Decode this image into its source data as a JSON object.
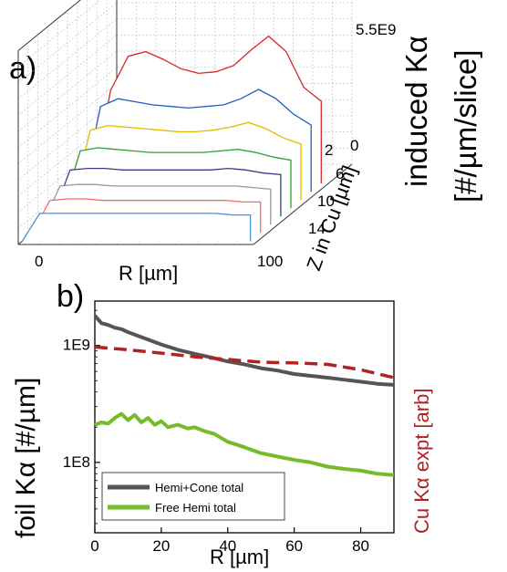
{
  "chart_data": [
    {
      "panel_label": "a)",
      "type": "line",
      "view": "3d-waterfall",
      "ylabel": "induced Kα",
      "ylabel_unit": "[#/µm/slice]",
      "xlabel": "R [µm]",
      "zlabel": "Z in Cu [µm]",
      "x_ticks": [
        "0",
        "100"
      ],
      "z_ticks": [
        "2",
        "6",
        "10",
        "14"
      ],
      "z_extra_tick": "0",
      "y_max_label": "5.5E9",
      "grid": true,
      "series": [
        {
          "color": "#d62728",
          "values": [
            0.0,
            0.6,
            0.82,
            0.85,
            0.8,
            0.74,
            0.71,
            0.72,
            0.76,
            0.86,
            0.95,
            0.85,
            0.62,
            0.53
          ]
        },
        {
          "color": "#1f5fbf",
          "values": [
            0.0,
            0.55,
            0.6,
            0.58,
            0.56,
            0.55,
            0.54,
            0.55,
            0.56,
            0.6,
            0.66,
            0.6,
            0.5,
            0.43
          ]
        },
        {
          "color": "#e6b800",
          "values": [
            0.0,
            0.45,
            0.48,
            0.47,
            0.46,
            0.45,
            0.44,
            0.44,
            0.45,
            0.47,
            0.5,
            0.46,
            0.4,
            0.36
          ]
        },
        {
          "color": "#2ca02c",
          "values": [
            0.0,
            0.37,
            0.39,
            0.38,
            0.37,
            0.36,
            0.36,
            0.36,
            0.36,
            0.37,
            0.38,
            0.36,
            0.33,
            0.31
          ]
        },
        {
          "color": "#3a3a8c",
          "values": [
            0.0,
            0.3,
            0.31,
            0.31,
            0.3,
            0.3,
            0.3,
            0.3,
            0.3,
            0.3,
            0.31,
            0.3,
            0.28,
            0.27
          ]
        },
        {
          "color": "#9a9a9a",
          "values": [
            0.0,
            0.25,
            0.26,
            0.26,
            0.25,
            0.25,
            0.25,
            0.25,
            0.25,
            0.25,
            0.25,
            0.25,
            0.24,
            0.23
          ]
        },
        {
          "color": "#ff6666",
          "values": [
            0.0,
            0.21,
            0.22,
            0.22,
            0.21,
            0.21,
            0.21,
            0.21,
            0.21,
            0.21,
            0.21,
            0.21,
            0.2,
            0.2
          ]
        },
        {
          "color": "#4a90d9",
          "values": [
            0.0,
            0.18,
            0.18,
            0.18,
            0.18,
            0.18,
            0.18,
            0.18,
            0.18,
            0.18,
            0.18,
            0.18,
            0.17,
            0.17
          ]
        }
      ]
    },
    {
      "panel_label": "b)",
      "type": "line",
      "xlabel": "R [µm]",
      "ylabel": "foil Kα [#/µm]",
      "y2label": "Cu Kα expt [arb]",
      "xlim": [
        0,
        90
      ],
      "ylim": [
        25000000,
        2400000000
      ],
      "yscale": "log",
      "x_ticks": [
        0,
        20,
        40,
        60,
        80
      ],
      "y_ticks": [
        {
          "value": 100000000,
          "label": "1E8"
        },
        {
          "value": 1000000000,
          "label": "1E9"
        }
      ],
      "legend": "bottom-left",
      "series": [
        {
          "name": "Hemi+Cone total",
          "color": "#555555",
          "style": "solid",
          "in_legend": true,
          "x": [
            0,
            2,
            4,
            6,
            8,
            10,
            15,
            20,
            25,
            30,
            35,
            40,
            45,
            50,
            55,
            60,
            65,
            70,
            75,
            80,
            85,
            90
          ],
          "y": [
            1800000000,
            1550000000,
            1500000000,
            1420000000,
            1380000000,
            1300000000,
            1150000000,
            1020000000,
            920000000,
            850000000,
            790000000,
            730000000,
            690000000,
            640000000,
            610000000,
            570000000,
            550000000,
            530000000,
            510000000,
            490000000,
            470000000,
            460000000
          ]
        },
        {
          "name": "Free Hemi total",
          "color": "#77bb2a",
          "style": "solid",
          "in_legend": true,
          "x": [
            0,
            2,
            4,
            6,
            8,
            10,
            12,
            14,
            16,
            18,
            20,
            22,
            25,
            28,
            30,
            33,
            36,
            40,
            45,
            50,
            55,
            60,
            65,
            70,
            75,
            80,
            85,
            90
          ],
          "y": [
            210000000,
            220000000,
            215000000,
            240000000,
            260000000,
            230000000,
            255000000,
            220000000,
            240000000,
            210000000,
            225000000,
            200000000,
            210000000,
            195000000,
            200000000,
            185000000,
            175000000,
            150000000,
            135000000,
            120000000,
            112000000,
            105000000,
            100000000,
            92000000,
            88000000,
            85000000,
            80000000,
            78000000
          ]
        },
        {
          "name": "",
          "color": "#b22222",
          "style": "dashed",
          "in_legend": false,
          "x": [
            0,
            10,
            20,
            30,
            40,
            50,
            60,
            70,
            80,
            90
          ],
          "y": [
            970000000,
            920000000,
            860000000,
            800000000,
            760000000,
            720000000,
            710000000,
            690000000,
            620000000,
            530000000
          ]
        }
      ]
    }
  ]
}
